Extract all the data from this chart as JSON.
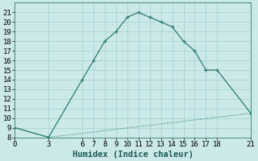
{
  "xlabel": "Humidex (Indice chaleur)",
  "line1_x": [
    0,
    3,
    6,
    7,
    8,
    9,
    10,
    11,
    12,
    13,
    14,
    15,
    16,
    17,
    18,
    21
  ],
  "line1_y": [
    9.0,
    8.0,
    14.0,
    16.0,
    18.0,
    19.0,
    20.5,
    21.0,
    20.5,
    20.0,
    19.5,
    18.0,
    17.0,
    15.0,
    15.0,
    10.5
  ],
  "line2_x": [
    0,
    3,
    21
  ],
  "line2_y": [
    9.0,
    8.0,
    10.5
  ],
  "line_color": "#2d7d6e",
  "bg_color": "#cce9e9",
  "grid_color": "#aad4d4",
  "ylim": [
    8,
    22
  ],
  "xlim": [
    0,
    21
  ],
  "yticks": [
    8,
    9,
    10,
    11,
    12,
    13,
    14,
    15,
    16,
    17,
    18,
    19,
    20,
    21
  ],
  "xticks": [
    0,
    3,
    6,
    7,
    8,
    9,
    10,
    11,
    12,
    13,
    14,
    15,
    16,
    17,
    18,
    21
  ],
  "tick_fontsize": 6.5,
  "xlabel_fontsize": 7.5
}
